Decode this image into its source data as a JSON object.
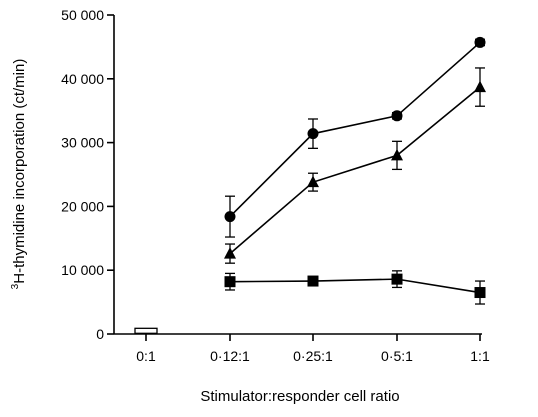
{
  "chart_data": {
    "type": "line",
    "title": "",
    "xlabel": "Stimulator:responder cell ratio",
    "ylabel_superscript": "3",
    "ylabel": "H-thymidine incorporation (ct/min)",
    "categories": [
      "0:1",
      "0·12:1",
      "0·25:1",
      "0·5:1",
      "1:1"
    ],
    "ylim": [
      0,
      50000
    ],
    "yticks": [
      0,
      10000,
      20000,
      30000,
      40000,
      50000
    ],
    "ytick_labels": [
      "0",
      "10 000",
      "20 000",
      "30 000",
      "40 000",
      "50 000"
    ],
    "grid": false,
    "legend": "none",
    "series": [
      {
        "marker": "circle",
        "values": [
          null,
          18400,
          31400,
          34200,
          45700
        ],
        "errors": [
          null,
          3200,
          2300,
          500,
          500
        ]
      },
      {
        "marker": "triangle",
        "values": [
          null,
          12600,
          23800,
          28000,
          38700
        ],
        "errors": [
          null,
          1500,
          1400,
          2200,
          3000
        ]
      },
      {
        "marker": "square",
        "values": [
          null,
          8200,
          8300,
          8600,
          6500
        ],
        "errors": [
          null,
          1300,
          300,
          1300,
          1800
        ]
      },
      {
        "marker": "open-square",
        "values": [
          500,
          null,
          null,
          null,
          null
        ],
        "errors": [
          200,
          null,
          null,
          null,
          null
        ]
      }
    ]
  }
}
